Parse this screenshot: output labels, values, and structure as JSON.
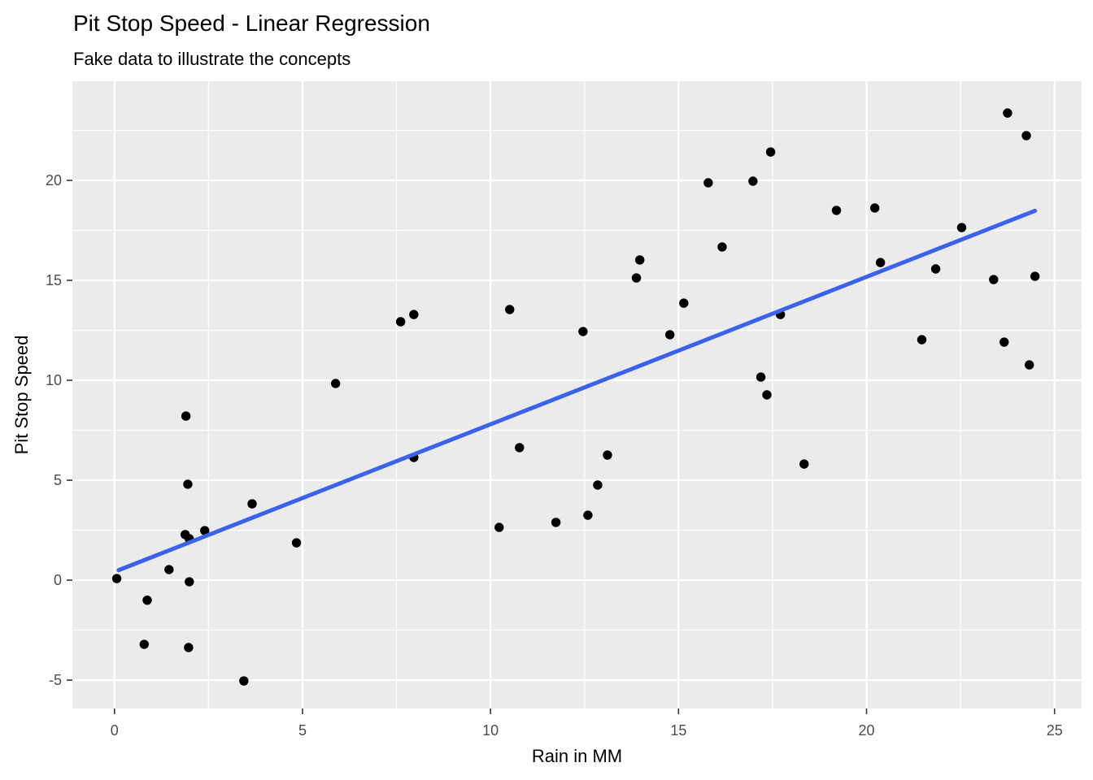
{
  "chart_data": {
    "type": "scatter",
    "title": "Pit Stop Speed - Linear Regression",
    "subtitle": "Fake data to illustrate the concepts",
    "xlabel": "Rain in MM",
    "ylabel": "Pit Stop Speed",
    "xlim": [
      -1.12,
      25.72
    ],
    "ylim": [
      -6.42,
      24.96
    ],
    "x_major_ticks": [
      0,
      5,
      10,
      15,
      20,
      25
    ],
    "y_major_ticks": [
      -5,
      0,
      5,
      10,
      15,
      20
    ],
    "x_minor_gridlines": [
      2.5,
      7.5,
      12.5,
      17.5,
      22.5
    ],
    "y_minor_gridlines": [
      -2.5,
      2.5,
      7.5,
      12.5,
      17.5,
      22.5
    ],
    "grid": "major-and-minor",
    "legend_position": "none",
    "points": [
      [
        0.06,
        0.08
      ],
      [
        0.79,
        -3.21
      ],
      [
        0.87,
        -1.0
      ],
      [
        1.45,
        0.53
      ],
      [
        1.9,
        8.21
      ],
      [
        1.95,
        4.8
      ],
      [
        1.88,
        2.28
      ],
      [
        1.99,
        2.07
      ],
      [
        2.4,
        2.48
      ],
      [
        1.99,
        -0.08
      ],
      [
        1.97,
        -3.37
      ],
      [
        3.44,
        -5.04
      ],
      [
        3.66,
        3.82
      ],
      [
        4.84,
        1.87
      ],
      [
        5.88,
        9.84
      ],
      [
        7.61,
        12.93
      ],
      [
        7.96,
        13.29
      ],
      [
        7.96,
        6.14
      ],
      [
        10.23,
        2.64
      ],
      [
        10.51,
        13.54
      ],
      [
        10.77,
        6.63
      ],
      [
        11.74,
        2.89
      ],
      [
        12.46,
        12.44
      ],
      [
        12.59,
        3.25
      ],
      [
        12.85,
        4.76
      ],
      [
        13.11,
        6.26
      ],
      [
        13.88,
        15.12
      ],
      [
        13.97,
        16.02
      ],
      [
        14.77,
        12.28
      ],
      [
        15.14,
        13.86
      ],
      [
        15.79,
        19.88
      ],
      [
        16.16,
        16.67
      ],
      [
        16.98,
        19.96
      ],
      [
        17.19,
        10.16
      ],
      [
        17.35,
        9.27
      ],
      [
        17.45,
        21.42
      ],
      [
        17.71,
        13.29
      ],
      [
        18.34,
        5.81
      ],
      [
        19.2,
        18.5
      ],
      [
        20.22,
        18.62
      ],
      [
        20.37,
        15.89
      ],
      [
        21.47,
        12.03
      ],
      [
        21.84,
        15.57
      ],
      [
        22.53,
        17.64
      ],
      [
        23.38,
        15.04
      ],
      [
        23.66,
        11.91
      ],
      [
        23.75,
        23.37
      ],
      [
        24.25,
        22.24
      ],
      [
        24.33,
        10.77
      ],
      [
        24.48,
        15.2
      ]
    ],
    "regression_line": {
      "x1": 0.11,
      "y1": 0.5,
      "x2": 24.48,
      "y2": 18.48
    },
    "colors": {
      "page_bg": "#FFFFFF",
      "panel_bg": "#EBEBEB",
      "grid": "#FFFFFF",
      "point": "#000000",
      "line": "#3B62EB",
      "tick_mark": "#333333",
      "tick_label": "#4D4D4D",
      "text": "#000000"
    }
  }
}
